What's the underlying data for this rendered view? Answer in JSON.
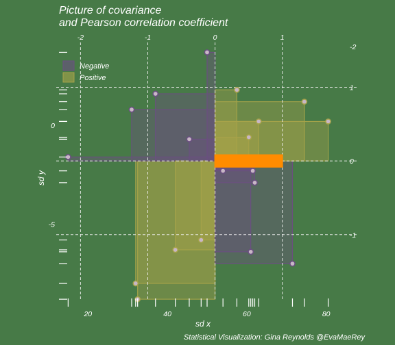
{
  "colors": {
    "background": "#477a47",
    "negative": "#6b4f82",
    "positive": "#a7a34a",
    "mean_line": "#ff8c00",
    "point_fill": "#c8b7c6",
    "guide": "#f0f0f0"
  },
  "chart_data": {
    "type": "scatter",
    "title_lines": [
      "Picture of covariance",
      "and Pearson correlation coefficient"
    ],
    "xlabel": "sd x",
    "ylabel": "sd y",
    "caption": "Statistical Visualization: Gina Reynolds @EvaMaeRey",
    "x_ticks": [
      20,
      40,
      60,
      80
    ],
    "y_ticks": [
      0,
      -5
    ],
    "sd_x_ticks": [
      -2,
      -1,
      0,
      1
    ],
    "sd_y_ticks": [
      -2,
      1,
      0,
      -1
    ],
    "xlim": [
      12,
      88
    ],
    "ylim": [
      -8.9,
      4.2
    ],
    "mean": {
      "x": 52,
      "y": -1.8
    },
    "mean_band_width_y": 0.3,
    "legend": {
      "placement": "top-left",
      "items": [
        {
          "label": "Negative",
          "key": "negative"
        },
        {
          "label": "Positive",
          "key": "positive"
        }
      ]
    },
    "points": [
      {
        "x": 15,
        "y": -1.6
      },
      {
        "x": 32.0,
        "y": -8.0
      },
      {
        "x": 32.5,
        "y": -8.8
      },
      {
        "x": 31.0,
        "y": 0.8
      },
      {
        "x": 37.0,
        "y": 1.6
      },
      {
        "x": 42.0,
        "y": -6.3
      },
      {
        "x": 45.5,
        "y": -0.7
      },
      {
        "x": 48.5,
        "y": -5.8
      },
      {
        "x": 50.0,
        "y": 3.7
      },
      {
        "x": 54.0,
        "y": -2.3
      },
      {
        "x": 57.5,
        "y": 1.8
      },
      {
        "x": 60.5,
        "y": -0.6
      },
      {
        "x": 61.0,
        "y": -6.4
      },
      {
        "x": 61.5,
        "y": -2.3
      },
      {
        "x": 62.0,
        "y": -2.9
      },
      {
        "x": 63.0,
        "y": 0.2
      },
      {
        "x": 71.5,
        "y": -7.0
      },
      {
        "x": 74.5,
        "y": 1.2
      },
      {
        "x": 80.5,
        "y": 0.2
      }
    ]
  }
}
